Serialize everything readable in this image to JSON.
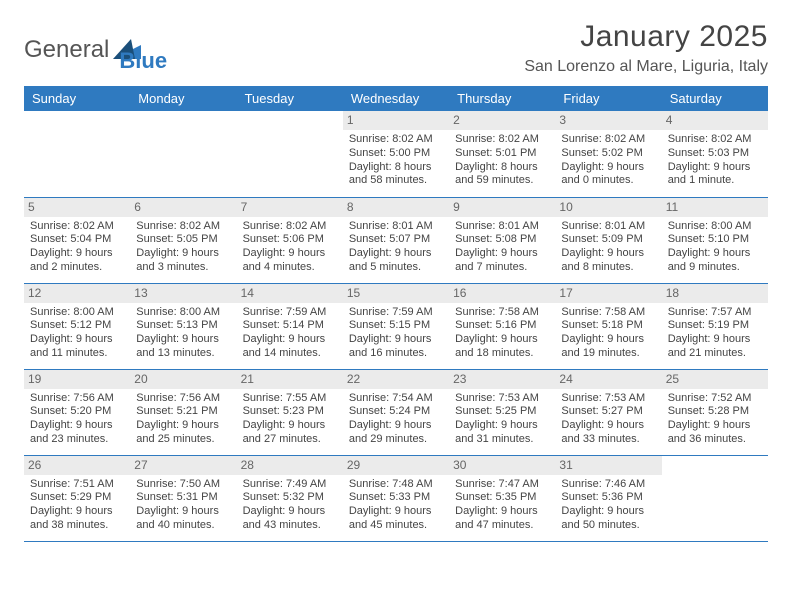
{
  "brand": {
    "name_a": "General",
    "name_b": "Blue"
  },
  "title": "January 2025",
  "location": "San Lorenzo al Mare, Liguria, Italy",
  "colors": {
    "accent": "#2f7ac0",
    "daynum_bg": "#ebebeb",
    "text": "#444444",
    "header_text": "#ffffff"
  },
  "weekdays": [
    "Sunday",
    "Monday",
    "Tuesday",
    "Wednesday",
    "Thursday",
    "Friday",
    "Saturday"
  ],
  "weeks": [
    [
      null,
      null,
      null,
      {
        "n": "1",
        "sr": "Sunrise: 8:02 AM",
        "ss": "Sunset: 5:00 PM",
        "d1": "Daylight: 8 hours",
        "d2": "and 58 minutes."
      },
      {
        "n": "2",
        "sr": "Sunrise: 8:02 AM",
        "ss": "Sunset: 5:01 PM",
        "d1": "Daylight: 8 hours",
        "d2": "and 59 minutes."
      },
      {
        "n": "3",
        "sr": "Sunrise: 8:02 AM",
        "ss": "Sunset: 5:02 PM",
        "d1": "Daylight: 9 hours",
        "d2": "and 0 minutes."
      },
      {
        "n": "4",
        "sr": "Sunrise: 8:02 AM",
        "ss": "Sunset: 5:03 PM",
        "d1": "Daylight: 9 hours",
        "d2": "and 1 minute."
      }
    ],
    [
      {
        "n": "5",
        "sr": "Sunrise: 8:02 AM",
        "ss": "Sunset: 5:04 PM",
        "d1": "Daylight: 9 hours",
        "d2": "and 2 minutes."
      },
      {
        "n": "6",
        "sr": "Sunrise: 8:02 AM",
        "ss": "Sunset: 5:05 PM",
        "d1": "Daylight: 9 hours",
        "d2": "and 3 minutes."
      },
      {
        "n": "7",
        "sr": "Sunrise: 8:02 AM",
        "ss": "Sunset: 5:06 PM",
        "d1": "Daylight: 9 hours",
        "d2": "and 4 minutes."
      },
      {
        "n": "8",
        "sr": "Sunrise: 8:01 AM",
        "ss": "Sunset: 5:07 PM",
        "d1": "Daylight: 9 hours",
        "d2": "and 5 minutes."
      },
      {
        "n": "9",
        "sr": "Sunrise: 8:01 AM",
        "ss": "Sunset: 5:08 PM",
        "d1": "Daylight: 9 hours",
        "d2": "and 7 minutes."
      },
      {
        "n": "10",
        "sr": "Sunrise: 8:01 AM",
        "ss": "Sunset: 5:09 PM",
        "d1": "Daylight: 9 hours",
        "d2": "and 8 minutes."
      },
      {
        "n": "11",
        "sr": "Sunrise: 8:00 AM",
        "ss": "Sunset: 5:10 PM",
        "d1": "Daylight: 9 hours",
        "d2": "and 9 minutes."
      }
    ],
    [
      {
        "n": "12",
        "sr": "Sunrise: 8:00 AM",
        "ss": "Sunset: 5:12 PM",
        "d1": "Daylight: 9 hours",
        "d2": "and 11 minutes."
      },
      {
        "n": "13",
        "sr": "Sunrise: 8:00 AM",
        "ss": "Sunset: 5:13 PM",
        "d1": "Daylight: 9 hours",
        "d2": "and 13 minutes."
      },
      {
        "n": "14",
        "sr": "Sunrise: 7:59 AM",
        "ss": "Sunset: 5:14 PM",
        "d1": "Daylight: 9 hours",
        "d2": "and 14 minutes."
      },
      {
        "n": "15",
        "sr": "Sunrise: 7:59 AM",
        "ss": "Sunset: 5:15 PM",
        "d1": "Daylight: 9 hours",
        "d2": "and 16 minutes."
      },
      {
        "n": "16",
        "sr": "Sunrise: 7:58 AM",
        "ss": "Sunset: 5:16 PM",
        "d1": "Daylight: 9 hours",
        "d2": "and 18 minutes."
      },
      {
        "n": "17",
        "sr": "Sunrise: 7:58 AM",
        "ss": "Sunset: 5:18 PM",
        "d1": "Daylight: 9 hours",
        "d2": "and 19 minutes."
      },
      {
        "n": "18",
        "sr": "Sunrise: 7:57 AM",
        "ss": "Sunset: 5:19 PM",
        "d1": "Daylight: 9 hours",
        "d2": "and 21 minutes."
      }
    ],
    [
      {
        "n": "19",
        "sr": "Sunrise: 7:56 AM",
        "ss": "Sunset: 5:20 PM",
        "d1": "Daylight: 9 hours",
        "d2": "and 23 minutes."
      },
      {
        "n": "20",
        "sr": "Sunrise: 7:56 AM",
        "ss": "Sunset: 5:21 PM",
        "d1": "Daylight: 9 hours",
        "d2": "and 25 minutes."
      },
      {
        "n": "21",
        "sr": "Sunrise: 7:55 AM",
        "ss": "Sunset: 5:23 PM",
        "d1": "Daylight: 9 hours",
        "d2": "and 27 minutes."
      },
      {
        "n": "22",
        "sr": "Sunrise: 7:54 AM",
        "ss": "Sunset: 5:24 PM",
        "d1": "Daylight: 9 hours",
        "d2": "and 29 minutes."
      },
      {
        "n": "23",
        "sr": "Sunrise: 7:53 AM",
        "ss": "Sunset: 5:25 PM",
        "d1": "Daylight: 9 hours",
        "d2": "and 31 minutes."
      },
      {
        "n": "24",
        "sr": "Sunrise: 7:53 AM",
        "ss": "Sunset: 5:27 PM",
        "d1": "Daylight: 9 hours",
        "d2": "and 33 minutes."
      },
      {
        "n": "25",
        "sr": "Sunrise: 7:52 AM",
        "ss": "Sunset: 5:28 PM",
        "d1": "Daylight: 9 hours",
        "d2": "and 36 minutes."
      }
    ],
    [
      {
        "n": "26",
        "sr": "Sunrise: 7:51 AM",
        "ss": "Sunset: 5:29 PM",
        "d1": "Daylight: 9 hours",
        "d2": "and 38 minutes."
      },
      {
        "n": "27",
        "sr": "Sunrise: 7:50 AM",
        "ss": "Sunset: 5:31 PM",
        "d1": "Daylight: 9 hours",
        "d2": "and 40 minutes."
      },
      {
        "n": "28",
        "sr": "Sunrise: 7:49 AM",
        "ss": "Sunset: 5:32 PM",
        "d1": "Daylight: 9 hours",
        "d2": "and 43 minutes."
      },
      {
        "n": "29",
        "sr": "Sunrise: 7:48 AM",
        "ss": "Sunset: 5:33 PM",
        "d1": "Daylight: 9 hours",
        "d2": "and 45 minutes."
      },
      {
        "n": "30",
        "sr": "Sunrise: 7:47 AM",
        "ss": "Sunset: 5:35 PM",
        "d1": "Daylight: 9 hours",
        "d2": "and 47 minutes."
      },
      {
        "n": "31",
        "sr": "Sunrise: 7:46 AM",
        "ss": "Sunset: 5:36 PM",
        "d1": "Daylight: 9 hours",
        "d2": "and 50 minutes."
      },
      null
    ]
  ]
}
